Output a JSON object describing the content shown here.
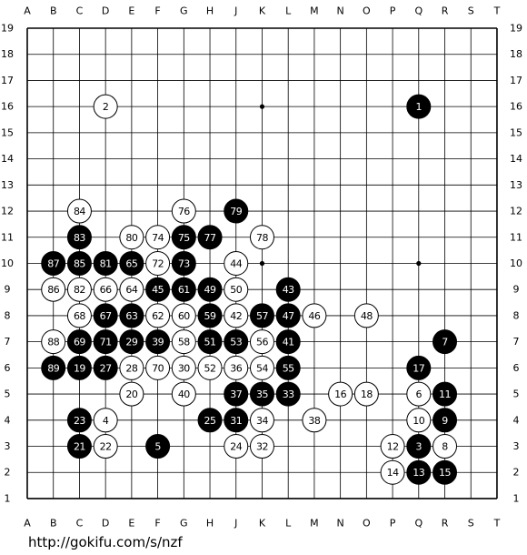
{
  "columns": [
    "A",
    "B",
    "C",
    "D",
    "E",
    "F",
    "G",
    "H",
    "J",
    "K",
    "L",
    "M",
    "N",
    "O",
    "P",
    "Q",
    "R",
    "S",
    "T"
  ],
  "rows": [
    "19",
    "18",
    "17",
    "16",
    "15",
    "14",
    "13",
    "12",
    "11",
    "10",
    "9",
    "8",
    "7",
    "6",
    "5",
    "4",
    "3",
    "2",
    "1"
  ],
  "moves": [
    {
      "number": 1,
      "color": "black",
      "col": "Q",
      "row": "16"
    },
    {
      "number": 2,
      "color": "white",
      "col": "D",
      "row": "16"
    },
    {
      "number": 3,
      "color": "black",
      "col": "Q",
      "row": "3"
    },
    {
      "number": 4,
      "color": "white",
      "col": "D",
      "row": "4"
    },
    {
      "number": 5,
      "color": "black",
      "col": "F",
      "row": "3"
    },
    {
      "number": 6,
      "color": "white",
      "col": "Q",
      "row": "5"
    },
    {
      "number": 7,
      "color": "black",
      "col": "R",
      "row": "7"
    },
    {
      "number": 8,
      "color": "white",
      "col": "R",
      "row": "3"
    },
    {
      "number": 9,
      "color": "black",
      "col": "R",
      "row": "4"
    },
    {
      "number": 10,
      "color": "white",
      "col": "Q",
      "row": "4"
    },
    {
      "number": 11,
      "color": "black",
      "col": "R",
      "row": "5"
    },
    {
      "number": 12,
      "color": "white",
      "col": "P",
      "row": "3"
    },
    {
      "number": 13,
      "color": "black",
      "col": "Q",
      "row": "2"
    },
    {
      "number": 14,
      "color": "white",
      "col": "P",
      "row": "2"
    },
    {
      "number": 15,
      "color": "black",
      "col": "R",
      "row": "2"
    },
    {
      "number": 16,
      "color": "white",
      "col": "N",
      "row": "5"
    },
    {
      "number": 17,
      "color": "black",
      "col": "Q",
      "row": "6"
    },
    {
      "number": 18,
      "color": "white",
      "col": "O",
      "row": "5"
    },
    {
      "number": 19,
      "color": "black",
      "col": "C",
      "row": "6"
    },
    {
      "number": 20,
      "color": "white",
      "col": "E",
      "row": "5"
    },
    {
      "number": 21,
      "color": "black",
      "col": "C",
      "row": "3"
    },
    {
      "number": 22,
      "color": "white",
      "col": "D",
      "row": "3"
    },
    {
      "number": 23,
      "color": "black",
      "col": "C",
      "row": "4"
    },
    {
      "number": 24,
      "color": "white",
      "col": "J",
      "row": "3"
    },
    {
      "number": 25,
      "color": "black",
      "col": "H",
      "row": "4"
    },
    {
      "number": 27,
      "color": "black",
      "col": "D",
      "row": "6"
    },
    {
      "number": 28,
      "color": "white",
      "col": "E",
      "row": "6"
    },
    {
      "number": 29,
      "color": "black",
      "col": "E",
      "row": "7"
    },
    {
      "number": 30,
      "color": "white",
      "col": "G",
      "row": "6"
    },
    {
      "number": 31,
      "color": "black",
      "col": "J",
      "row": "4"
    },
    {
      "number": 32,
      "color": "white",
      "col": "K",
      "row": "3"
    },
    {
      "number": 33,
      "color": "black",
      "col": "L",
      "row": "5"
    },
    {
      "number": 34,
      "color": "white",
      "col": "K",
      "row": "4"
    },
    {
      "number": 35,
      "color": "black",
      "col": "K",
      "row": "5"
    },
    {
      "number": 36,
      "color": "white",
      "col": "J",
      "row": "6"
    },
    {
      "number": 37,
      "color": "black",
      "col": "J",
      "row": "5"
    },
    {
      "number": 38,
      "color": "white",
      "col": "M",
      "row": "4"
    },
    {
      "number": 39,
      "color": "black",
      "col": "F",
      "row": "7"
    },
    {
      "number": 40,
      "color": "white",
      "col": "G",
      "row": "5"
    },
    {
      "number": 41,
      "color": "black",
      "col": "L",
      "row": "7"
    },
    {
      "number": 42,
      "color": "white",
      "col": "J",
      "row": "8"
    },
    {
      "number": 43,
      "color": "black",
      "col": "L",
      "row": "9"
    },
    {
      "number": 44,
      "color": "white",
      "col": "J",
      "row": "10"
    },
    {
      "number": 45,
      "color": "black",
      "col": "F",
      "row": "9"
    },
    {
      "number": 46,
      "color": "white",
      "col": "M",
      "row": "8"
    },
    {
      "number": 47,
      "color": "black",
      "col": "L",
      "row": "8"
    },
    {
      "number": 48,
      "color": "white",
      "col": "O",
      "row": "8"
    },
    {
      "number": 49,
      "color": "black",
      "col": "H",
      "row": "9"
    },
    {
      "number": 50,
      "color": "white",
      "col": "J",
      "row": "9"
    },
    {
      "number": 51,
      "color": "black",
      "col": "H",
      "row": "7"
    },
    {
      "number": 52,
      "color": "white",
      "col": "H",
      "row": "6"
    },
    {
      "number": 53,
      "color": "black",
      "col": "J",
      "row": "7"
    },
    {
      "number": 54,
      "color": "white",
      "col": "K",
      "row": "6"
    },
    {
      "number": 55,
      "color": "black",
      "col": "L",
      "row": "6"
    },
    {
      "number": 56,
      "color": "white",
      "col": "K",
      "row": "7"
    },
    {
      "number": 57,
      "color": "black",
      "col": "K",
      "row": "8"
    },
    {
      "number": 58,
      "color": "white",
      "col": "G",
      "row": "7"
    },
    {
      "number": 59,
      "color": "black",
      "col": "H",
      "row": "8"
    },
    {
      "number": 60,
      "color": "white",
      "col": "G",
      "row": "8"
    },
    {
      "number": 61,
      "color": "black",
      "col": "G",
      "row": "9"
    },
    {
      "number": 62,
      "color": "white",
      "col": "F",
      "row": "8"
    },
    {
      "number": 63,
      "color": "black",
      "col": "E",
      "row": "8"
    },
    {
      "number": 64,
      "color": "white",
      "col": "E",
      "row": "9"
    },
    {
      "number": 65,
      "color": "black",
      "col": "E",
      "row": "10"
    },
    {
      "number": 66,
      "color": "white",
      "col": "D",
      "row": "9"
    },
    {
      "number": 67,
      "color": "black",
      "col": "D",
      "row": "8"
    },
    {
      "number": 68,
      "color": "white",
      "col": "C",
      "row": "8"
    },
    {
      "number": 69,
      "color": "black",
      "col": "C",
      "row": "7"
    },
    {
      "number": 70,
      "color": "white",
      "col": "F",
      "row": "6"
    },
    {
      "number": 71,
      "color": "black",
      "col": "D",
      "row": "7"
    },
    {
      "number": 72,
      "color": "white",
      "col": "F",
      "row": "10"
    },
    {
      "number": 73,
      "color": "black",
      "col": "G",
      "row": "10"
    },
    {
      "number": 74,
      "color": "white",
      "col": "F",
      "row": "11"
    },
    {
      "number": 75,
      "color": "black",
      "col": "G",
      "row": "11"
    },
    {
      "number": 76,
      "color": "white",
      "col": "G",
      "row": "12"
    },
    {
      "number": 77,
      "color": "black",
      "col": "H",
      "row": "11"
    },
    {
      "number": 78,
      "color": "white",
      "col": "K",
      "row": "11"
    },
    {
      "number": 79,
      "color": "black",
      "col": "J",
      "row": "12"
    },
    {
      "number": 80,
      "color": "white",
      "col": "E",
      "row": "11"
    },
    {
      "number": 81,
      "color": "black",
      "col": "D",
      "row": "10"
    },
    {
      "number": 82,
      "color": "white",
      "col": "C",
      "row": "9"
    },
    {
      "number": 83,
      "color": "black",
      "col": "C",
      "row": "11"
    },
    {
      "number": 84,
      "color": "white",
      "col": "C",
      "row": "12"
    },
    {
      "number": 85,
      "color": "black",
      "col": "C",
      "row": "10"
    },
    {
      "number": 86,
      "color": "white",
      "col": "B",
      "row": "9"
    },
    {
      "number": 87,
      "color": "black",
      "col": "B",
      "row": "10"
    },
    {
      "number": 88,
      "color": "white",
      "col": "B",
      "row": "7"
    },
    {
      "number": 89,
      "color": "black",
      "col": "B",
      "row": "6"
    }
  ],
  "source_url": "http://gokifu.com/s/nzf"
}
